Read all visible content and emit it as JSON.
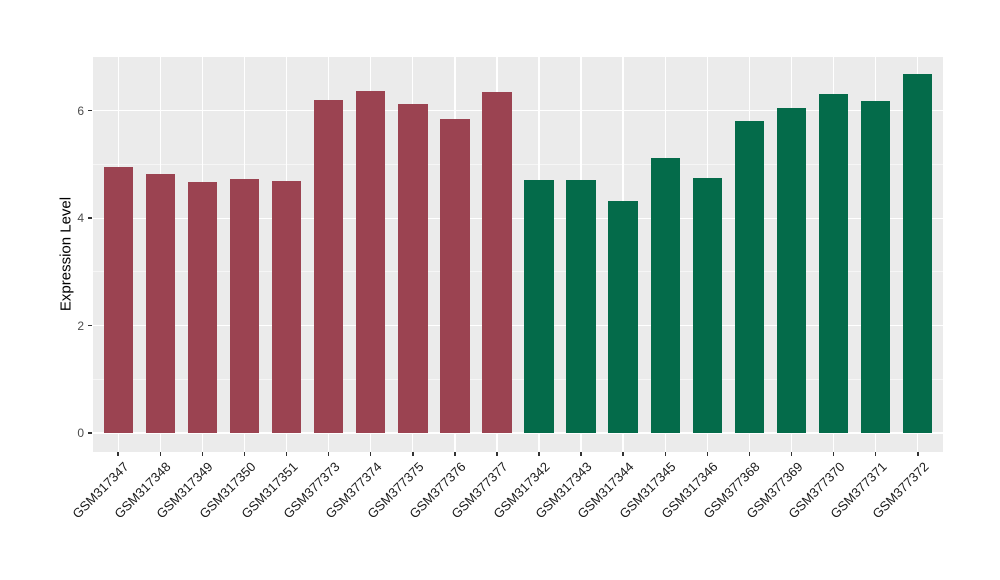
{
  "chart_data": {
    "type": "bar",
    "title": "",
    "xlabel": "",
    "ylabel": "Expression Level",
    "categories": [
      "GSM317347",
      "GSM317348",
      "GSM317349",
      "GSM317350",
      "GSM317351",
      "GSM377373",
      "GSM377374",
      "GSM377375",
      "GSM377376",
      "GSM377377",
      "GSM317342",
      "GSM317343",
      "GSM317344",
      "GSM317345",
      "GSM317346",
      "GSM377368",
      "GSM377369",
      "GSM377370",
      "GSM377371",
      "GSM377372"
    ],
    "values": [
      4.95,
      4.82,
      4.67,
      4.73,
      4.7,
      6.2,
      6.37,
      6.13,
      5.84,
      6.34,
      4.71,
      4.72,
      4.32,
      5.12,
      4.74,
      5.81,
      6.05,
      6.32,
      6.19,
      6.68
    ],
    "bar_group": [
      "a",
      "a",
      "a",
      "a",
      "a",
      "a",
      "a",
      "a",
      "a",
      "a",
      "b",
      "b",
      "b",
      "b",
      "b",
      "b",
      "b",
      "b",
      "b",
      "b"
    ],
    "group_colors": {
      "a": "#9B4351",
      "b": "#046B4A"
    },
    "yticks": [
      0,
      2,
      4,
      6
    ],
    "yticks_minor": [
      1,
      3,
      5
    ],
    "ylim": [
      -0.35,
      7.0
    ],
    "bar_width_frac": 0.7,
    "axis_expand": 0.6,
    "x_label_angle": 45,
    "panel_bg": "#EBEBEB",
    "grid_color": "#FFFFFF",
    "legend": "none",
    "grid": true
  }
}
